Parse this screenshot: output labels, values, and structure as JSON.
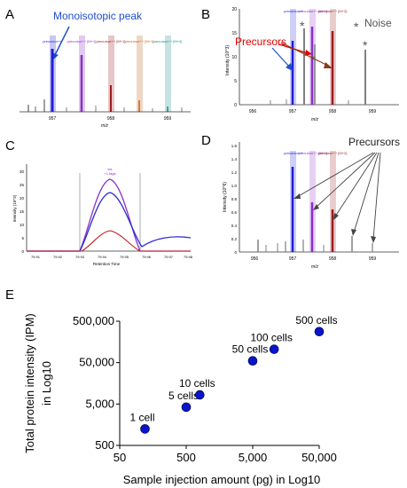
{
  "panels": {
    "A": {
      "label": "A",
      "annotation": "Monoisotopic peak",
      "peak_tags": [
        "precursor++",
        "precursor++ [M+1]",
        "precursor++ [M+1]",
        "precursor++ [M+1]",
        "precursor++ [M+4]"
      ],
      "x_ticks": [
        "957",
        "958",
        "959"
      ],
      "x_title": "m/z",
      "colors": {
        "blue": "#1f1fd6",
        "purple": "#8b2fc9",
        "red": "#9b1c1c",
        "orange": "#c0601a",
        "teal": "#1a8c8c",
        "gray": "#808080"
      }
    },
    "B": {
      "label": "B",
      "precursors_label": "Precursors",
      "noise_label": "Noise",
      "asterisk": "*",
      "peak_tags": [
        "precursor++",
        "precursor++ [M+1]",
        "precursor++ [M+2]"
      ],
      "y_title": "Intensity (10^3)",
      "y_ticks": [
        "0",
        "5",
        "10",
        "15",
        "20"
      ],
      "x_ticks": [
        "956",
        "957",
        "958",
        "959"
      ],
      "x_title": "m/z"
    },
    "C": {
      "label": "C",
      "y_title": "Intensity (10^3)",
      "y_ticks": [
        "0",
        "5",
        "10",
        "15",
        "20",
        "25",
        "30"
      ],
      "x_ticks": [
        "79.91",
        "79.92",
        "79.93",
        "79.94",
        "79.95",
        "79.96",
        "79.97",
        "79.98"
      ],
      "x_title": "Retention Time",
      "peak_tag": [
        "tcs",
        "+1 tags"
      ]
    },
    "D": {
      "label": "D",
      "precursors_label": "Precursors",
      "peak_tags": [
        "precursor++",
        "precursor++ [M+1]",
        "precursor++ [M+2]"
      ],
      "y_title": "Intensity (10^6)",
      "y_ticks": [
        "0",
        "0.2",
        "0.4",
        "0.6",
        "0.8",
        "1.0",
        "1.2",
        "1.4",
        "1.6"
      ],
      "x_ticks": [
        "956",
        "957",
        "958",
        "959"
      ],
      "x_title": "m/z"
    },
    "E": {
      "label": "E"
    }
  },
  "chart_data": {
    "type": "scatter",
    "title": "",
    "xlabel": "Sample injection amount (pg) in Log10",
    "ylabel_line1": "Total protein intensity (IPM)",
    "ylabel_line2": "in Log10",
    "xscale": "log",
    "yscale": "log",
    "xlim": [
      50,
      50000
    ],
    "ylim": [
      500,
      500000
    ],
    "x_tick_labels": [
      "50",
      "500",
      "5,000",
      "50,000"
    ],
    "y_tick_labels": [
      "500",
      "5,000",
      "50,000",
      "500,000"
    ],
    "grid": false,
    "marker_color": "#0a14c8",
    "points": [
      {
        "label": "1 cell",
        "x": 120,
        "y": 1250
      },
      {
        "label": "5 cells",
        "x": 500,
        "y": 4200
      },
      {
        "label": "10 cells",
        "x": 800,
        "y": 8300
      },
      {
        "label": "50 cells",
        "x": 5000,
        "y": 55000
      },
      {
        "label": "100 cells",
        "x": 10500,
        "y": 105000
      },
      {
        "label": "500 cells",
        "x": 50000,
        "y": 280000
      }
    ]
  }
}
